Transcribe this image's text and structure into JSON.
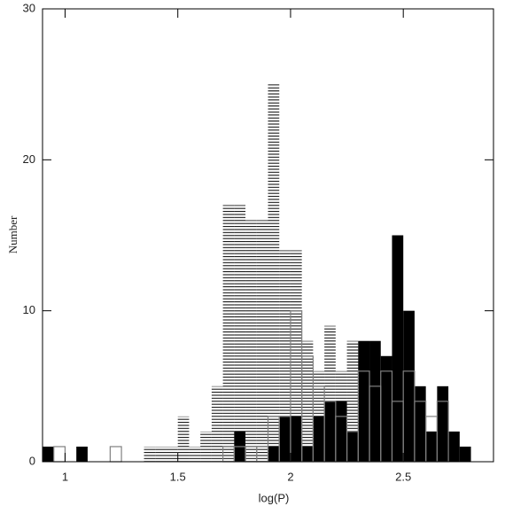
{
  "chart_data": {
    "type": "histogram",
    "xlabel": "log(P)",
    "ylabel": "Number",
    "xlim": [
      0.9,
      2.9
    ],
    "ylim": [
      0,
      30
    ],
    "xticks": [
      1,
      1.5,
      2,
      2.5
    ],
    "yticks": [
      0,
      10,
      20,
      30
    ],
    "bins": [
      0.9,
      0.95,
      1,
      1.05,
      1.1,
      1.15,
      1.2,
      1.25,
      1.3,
      1.35,
      1.4,
      1.45,
      1.5,
      1.55,
      1.6,
      1.65,
      1.7,
      1.75,
      1.8,
      1.85,
      1.9,
      1.95,
      2,
      2.05,
      2.1,
      2.15,
      2.2,
      2.25,
      2.3,
      2.35,
      2.4,
      2.45,
      2.5,
      2.55,
      2.6,
      2.65,
      2.7,
      2.75,
      2.8
    ],
    "series": [
      {
        "style": "hatched",
        "color": "#000000",
        "values": [
          0,
          0,
          0,
          0,
          0,
          0,
          0,
          0,
          0,
          1,
          1,
          1,
          3,
          1,
          2,
          5,
          17,
          17,
          16,
          16,
          25,
          14,
          14,
          8,
          6,
          9,
          6,
          8,
          7,
          6,
          5,
          6,
          5,
          3,
          2,
          2,
          0,
          0
        ]
      },
      {
        "style": "filled",
        "color": "#000000",
        "values": [
          1,
          0,
          0,
          1,
          0,
          0,
          0,
          0,
          0,
          0,
          0,
          0,
          0,
          0,
          0,
          0,
          0,
          2,
          0,
          0,
          1,
          3,
          3,
          1,
          3,
          4,
          4,
          2,
          8,
          8,
          7,
          15,
          10,
          5,
          2,
          5,
          2,
          1
        ]
      },
      {
        "style": "outline",
        "color": "#808080",
        "values": [
          0,
          1,
          0,
          0,
          0,
          0,
          1,
          0,
          0,
          0,
          0,
          0,
          0,
          0,
          0,
          0,
          1,
          1,
          1,
          1,
          3,
          3,
          10,
          7,
          5,
          4,
          3,
          2,
          6,
          5,
          6,
          4,
          6,
          4,
          3,
          4,
          0,
          0
        ]
      }
    ]
  }
}
